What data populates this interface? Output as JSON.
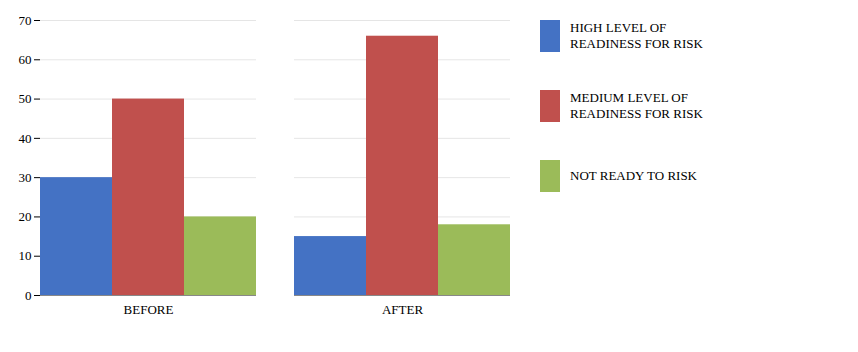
{
  "chart_data": {
    "type": "bar",
    "categories": [
      "BEFORE",
      "AFTER"
    ],
    "series": [
      {
        "name": "HIGH LEVEL OF\nREADINESS FOR RISK",
        "color": "#4472C4",
        "values": [
          30,
          15
        ]
      },
      {
        "name": "MEDIUM LEVEL OF\nREADINESS FOR RISK",
        "color": "#C0504D",
        "values": [
          50,
          66
        ]
      },
      {
        "name": "NOT READY TO RISK",
        "color": "#9BBB59",
        "values": [
          20,
          18
        ]
      }
    ],
    "ylim": [
      0,
      70
    ],
    "yticks": [
      0,
      10,
      20,
      30,
      40,
      50,
      60,
      70
    ],
    "grid": true,
    "legend": "right"
  }
}
